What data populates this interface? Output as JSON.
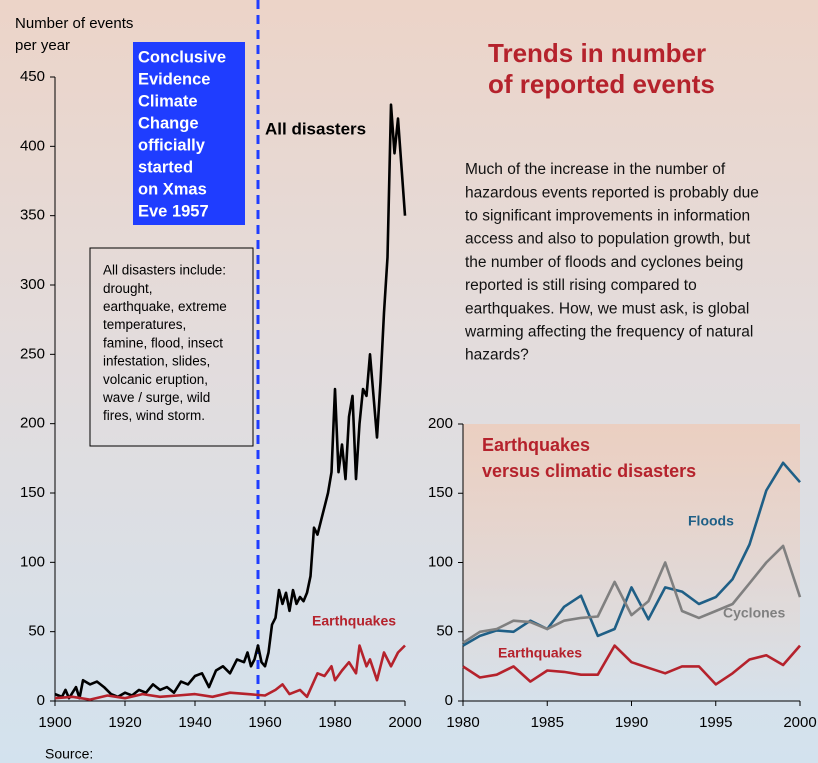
{
  "header": {
    "title": [
      "Trends in number",
      "of reported events"
    ],
    "text": [
      "Much of the increase in the number of",
      "hazardous events reported is probably due",
      "to significant improvements in information",
      "access and also to population growth, but",
      "the number of floods and cyclones being",
      "reported is still rising compared to",
      "earthquakes. How, we must ask, is global",
      "warming affecting the frequency of natural",
      "hazards?"
    ]
  },
  "source": "Source:",
  "chart_data": [
    {
      "type": "line",
      "y_label": [
        "Number of events",
        "per year"
      ],
      "xlim": [
        1900,
        2000
      ],
      "xticks": [
        1900,
        1920,
        1940,
        1960,
        1980,
        2000
      ],
      "ylim": [
        0,
        450
      ],
      "yticks": [
        0,
        50,
        100,
        150,
        200,
        250,
        300,
        350,
        400,
        450
      ],
      "event_line": {
        "x": 1958,
        "color": "#1f3dff",
        "text": [
          "Conclusive",
          "Evidence",
          "Climate",
          "Change",
          "officially",
          "started",
          "on Xmas",
          "Eve 1957"
        ]
      },
      "note": [
        "All disasters include:",
        "drought,",
        "earthquake, extreme",
        "temperatures,",
        "famine, flood, insect",
        "infestation, slides,",
        "volcanic eruption,",
        "wave / surge, wild",
        "fires, wind storm."
      ],
      "series": [
        {
          "name": "All disasters",
          "color": "#000000",
          "x": [
            1900,
            1902,
            1903,
            1904,
            1906,
            1907,
            1908,
            1910,
            1912,
            1914,
            1916,
            1918,
            1920,
            1922,
            1924,
            1926,
            1928,
            1930,
            1932,
            1934,
            1936,
            1938,
            1940,
            1942,
            1944,
            1946,
            1948,
            1950,
            1952,
            1954,
            1955,
            1956,
            1957,
            1958,
            1959,
            1960,
            1961,
            1962,
            1963,
            1964,
            1965,
            1966,
            1967,
            1968,
            1969,
            1970,
            1971,
            1972,
            1973,
            1974,
            1975,
            1976,
            1977,
            1978,
            1979,
            1980,
            1981,
            1982,
            1983,
            1984,
            1985,
            1986,
            1987,
            1988,
            1989,
            1990,
            1991,
            1992,
            1993,
            1994,
            1995,
            1996,
            1997,
            1998,
            1999,
            2000
          ],
          "values": [
            5,
            3,
            8,
            2,
            10,
            2,
            15,
            12,
            14,
            10,
            5,
            3,
            6,
            4,
            8,
            6,
            12,
            8,
            10,
            6,
            14,
            12,
            18,
            20,
            10,
            22,
            25,
            20,
            30,
            28,
            35,
            25,
            30,
            40,
            28,
            25,
            35,
            55,
            60,
            80,
            70,
            78,
            65,
            80,
            70,
            75,
            72,
            78,
            90,
            125,
            120,
            130,
            140,
            150,
            165,
            225,
            165,
            185,
            160,
            205,
            220,
            160,
            200,
            225,
            220,
            250,
            220,
            190,
            230,
            280,
            320,
            430,
            395,
            420,
            385,
            350
          ]
        },
        {
          "name": "Earthquakes",
          "color": "#b5222c",
          "x": [
            1900,
            1905,
            1910,
            1915,
            1920,
            1925,
            1930,
            1935,
            1940,
            1945,
            1950,
            1955,
            1960,
            1963,
            1965,
            1967,
            1970,
            1972,
            1975,
            1977,
            1979,
            1980,
            1982,
            1984,
            1986,
            1987,
            1989,
            1990,
            1992,
            1994,
            1996,
            1998,
            2000
          ],
          "values": [
            2,
            3,
            1,
            4,
            2,
            5,
            3,
            4,
            5,
            3,
            6,
            5,
            4,
            8,
            12,
            5,
            8,
            3,
            20,
            18,
            25,
            15,
            22,
            28,
            20,
            40,
            25,
            30,
            15,
            35,
            25,
            35,
            40
          ]
        }
      ]
    },
    {
      "type": "line",
      "title": [
        "Earthquakes",
        "versus climatic disasters"
      ],
      "xlim": [
        1980,
        2000
      ],
      "xticks": [
        1980,
        1985,
        1990,
        1995,
        2000
      ],
      "ylim": [
        0,
        200
      ],
      "yticks": [
        0,
        50,
        100,
        150,
        200
      ],
      "x": [
        1980,
        1981,
        1982,
        1983,
        1984,
        1985,
        1986,
        1987,
        1988,
        1989,
        1990,
        1991,
        1992,
        1993,
        1994,
        1995,
        1996,
        1997,
        1998,
        1999,
        2000
      ],
      "series": [
        {
          "name": "Floods",
          "color": "#1f5f86",
          "values": [
            40,
            47,
            51,
            50,
            58,
            52,
            68,
            76,
            47,
            52,
            82,
            59,
            82,
            79,
            70,
            75,
            88,
            113,
            152,
            172,
            158
          ]
        },
        {
          "name": "Cyclones",
          "color": "#808080",
          "values": [
            42,
            50,
            52,
            58,
            57,
            52,
            58,
            60,
            61,
            86,
            62,
            72,
            100,
            65,
            60,
            65,
            70,
            85,
            100,
            112,
            75
          ]
        },
        {
          "name": "Earthquakes",
          "color": "#b5222c",
          "values": [
            25,
            17,
            19,
            25,
            14,
            22,
            21,
            19,
            19,
            40,
            28,
            24,
            20,
            25,
            25,
            12,
            20,
            30,
            33,
            26,
            40
          ]
        }
      ]
    }
  ]
}
